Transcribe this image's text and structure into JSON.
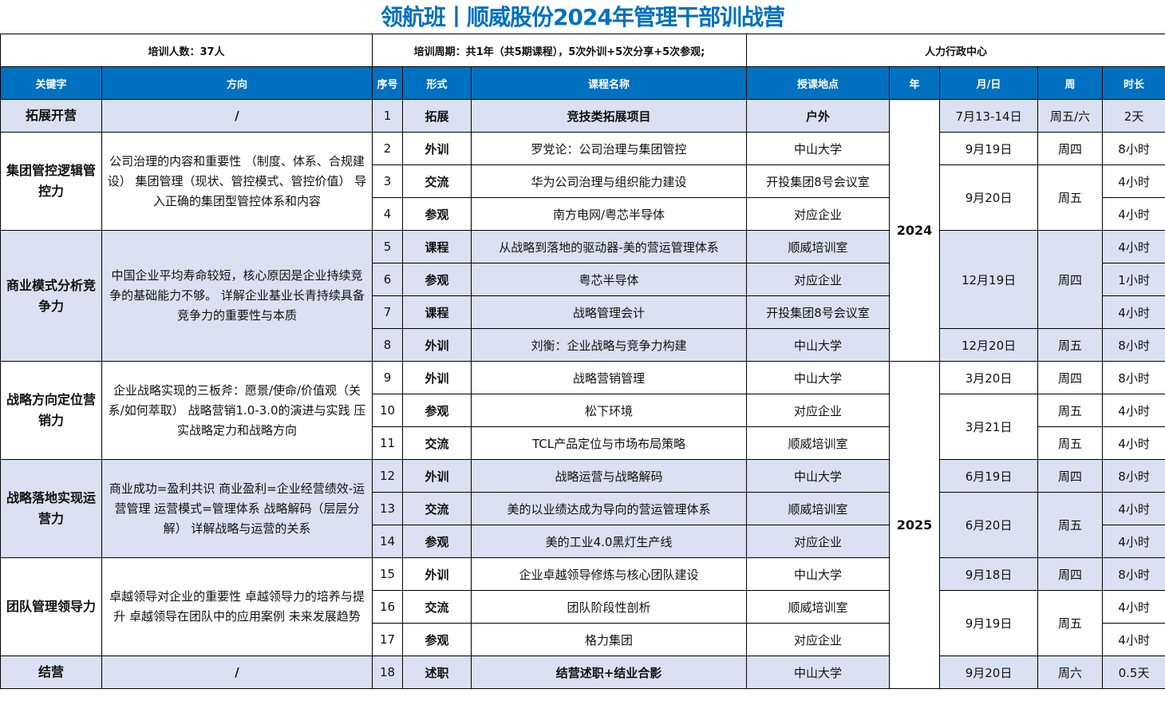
{
  "title": "领航班丨顺威股份2024年管理干部训战营",
  "info": {
    "participants": "培训人数：37人",
    "period": "培训周期：共1年（共5期课程），5次外训+5次分享+5次参观;",
    "organizer": "人力行政中心"
  },
  "headers": [
    "关键字",
    "方向",
    "序号",
    "形式",
    "课程名称",
    "授课地点",
    "年",
    "月/日",
    "周",
    "时长"
  ],
  "colors": {
    "header_bg": "#0070C0",
    "title": "#0070C0",
    "shade": "#D9E1F2"
  },
  "groups": [
    {
      "keyword": "拓展开营",
      "direction": "/",
      "shaded": true,
      "courses": [
        {
          "seq": "1",
          "form": "拓展",
          "name": "竞技类拓展项目",
          "location": "户外",
          "bold": true
        }
      ]
    },
    {
      "keyword": "集团管控逻辑管控力",
      "direction": "公司治理的内容和重要性 （制度、体系、合规建设） 集团管理（现状、管控模式、管控价值） 导入正确的集团型管控体系和内容",
      "shaded": false,
      "courses": [
        {
          "seq": "2",
          "form": "外训",
          "name": "罗党论：公司治理与集团管控",
          "location": "中山大学"
        },
        {
          "seq": "3",
          "form": "交流",
          "name": "华为公司治理与组织能力建设",
          "location": "开投集团8号会议室"
        },
        {
          "seq": "4",
          "form": "参观",
          "name": "南方电网/粤芯半导体",
          "location": "对应企业"
        }
      ]
    },
    {
      "keyword": "商业模式分析竞争力",
      "direction": "中国企业平均寿命较短，核心原因是企业持续竞争的基础能力不够。 详解企业基业长青持续具备竞争力的重要性与本质",
      "shaded": true,
      "courses": [
        {
          "seq": "5",
          "form": "课程",
          "name": "从战略到落地的驱动器-美的营运管理体系",
          "location": "顺威培训室"
        },
        {
          "seq": "6",
          "form": "参观",
          "name": "粤芯半导体",
          "location": "对应企业"
        },
        {
          "seq": "7",
          "form": "课程",
          "name": "战略管理会计",
          "location": "开投集团8号会议室"
        },
        {
          "seq": "8",
          "form": "外训",
          "name": "刘衡：企业战略与竞争力构建",
          "location": "中山大学"
        }
      ]
    },
    {
      "keyword": "战略方向定位营销力",
      "direction": "企业战略实现的三板斧：愿景/使命/价值观（关系/如何萃取） 战略营销1.0-3.0的演进与实践 压实战略定力和战略方向",
      "shaded": false,
      "courses": [
        {
          "seq": "9",
          "form": "外训",
          "name": "战略营销管理",
          "location": "中山大学"
        },
        {
          "seq": "10",
          "form": "参观",
          "name": "松下环境",
          "location": "对应企业"
        },
        {
          "seq": "11",
          "form": "交流",
          "name": "TCL产品定位与市场布局策略",
          "location": "顺威培训室"
        }
      ]
    },
    {
      "keyword": "战略落地实现运营力",
      "direction": "商业成功=盈利共识 商业盈利=企业经营绩效-运营管理 运营模式=管理体系 战略解码（层层分解） 详解战略与运营的关系",
      "shaded": true,
      "courses": [
        {
          "seq": "12",
          "form": "外训",
          "name": "战略运营与战略解码",
          "location": "中山大学"
        },
        {
          "seq": "13",
          "form": "交流",
          "name": "美的以业绩达成为导向的营运管理体系",
          "location": "顺威培训室"
        },
        {
          "seq": "14",
          "form": "参观",
          "name": "美的工业4.0黑灯生产线",
          "location": "对应企业"
        }
      ]
    },
    {
      "keyword": "团队管理领导力",
      "direction": "卓越领导对企业的重要性 卓越领导力的培养与提升 卓越领导在团队中的应用案例 未来发展趋势",
      "shaded": false,
      "courses": [
        {
          "seq": "15",
          "form": "外训",
          "name": "企业卓越领导修炼与核心团队建设",
          "location": "中山大学"
        },
        {
          "seq": "16",
          "form": "交流",
          "name": "团队阶段性剖析",
          "location": "顺威培训室"
        },
        {
          "seq": "17",
          "form": "参观",
          "name": "格力集团",
          "location": "对应企业"
        }
      ]
    },
    {
      "keyword": "结营",
      "direction": "/",
      "shaded": true,
      "courses": [
        {
          "seq": "18",
          "form": "述职",
          "name": "结营述职+结业合影",
          "location": "中山大学",
          "bold_name": true
        }
      ]
    }
  ],
  "years": [
    {
      "text": "2024",
      "rows": 8
    },
    {
      "text": "2025",
      "rows": 10
    }
  ],
  "dates": [
    {
      "text": "7月13-14日",
      "rows": 1,
      "shaded": true
    },
    {
      "text": "9月19日",
      "rows": 1,
      "shaded": false
    },
    {
      "text": "9月20日",
      "rows": 2,
      "shaded": false
    },
    {
      "text": "12月19日",
      "rows": 3,
      "shaded": true
    },
    {
      "text": "12月20日",
      "rows": 1,
      "shaded": true
    },
    {
      "text": "3月20日",
      "rows": 1,
      "shaded": false
    },
    {
      "text": "3月21日",
      "rows": 2,
      "shaded": false
    },
    {
      "text": "6月19日",
      "rows": 1,
      "shaded": true
    },
    {
      "text": "6月20日",
      "rows": 2,
      "shaded": true
    },
    {
      "text": "9月18日",
      "rows": 1,
      "shaded": true
    },
    {
      "text": "9月19日",
      "rows": 2,
      "shaded": false
    },
    {
      "text": "9月20日",
      "rows": 1,
      "shaded": true
    }
  ],
  "weeks": [
    {
      "text": "周五/六",
      "rows": 1
    },
    {
      "text": "周四",
      "rows": 1
    },
    {
      "text": "周五",
      "rows": 2
    },
    {
      "text": "周四",
      "rows": 3
    },
    {
      "text": "周五",
      "rows": 1
    },
    {
      "text": "周四",
      "rows": 1
    },
    {
      "text": "周五",
      "rows": 1
    },
    {
      "text": "周五",
      "rows": 1
    },
    {
      "text": "周四",
      "rows": 1
    },
    {
      "text": "周五",
      "rows": 2
    },
    {
      "text": "周四",
      "rows": 1
    },
    {
      "text": "周五",
      "rows": 2
    },
    {
      "text": "周六",
      "rows": 1
    }
  ],
  "durations": [
    "2天",
    "8小时",
    "4小时",
    "4小时",
    "4小时",
    "1小时",
    "4小时",
    "8小时",
    "8小时",
    "4小时",
    "4小时",
    "8小时",
    "4小时",
    "4小时",
    "8小时",
    "4小时",
    "4小时",
    "0.5天"
  ]
}
